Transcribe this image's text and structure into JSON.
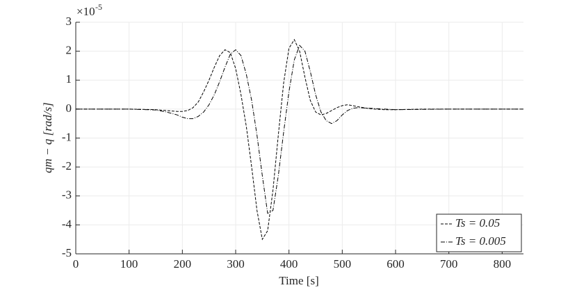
{
  "chart_data": {
    "type": "line",
    "xlabel": "Time [s]",
    "ylabel": "qm − q [rad/s]",
    "y_multiplier": "×10",
    "y_multiplier_exponent": "-5",
    "xlim": [
      0,
      840
    ],
    "ylim": [
      -5,
      3
    ],
    "xticks": [
      0,
      100,
      200,
      300,
      400,
      500,
      600,
      700,
      800
    ],
    "yticks": [
      3,
      2,
      1,
      0,
      -1,
      -2,
      -3,
      -4,
      -5
    ],
    "grid": true,
    "legend": "bottom-right",
    "x": [
      0,
      50,
      100,
      150,
      170,
      190,
      200,
      210,
      220,
      230,
      240,
      250,
      260,
      270,
      280,
      290,
      300,
      310,
      320,
      330,
      340,
      350,
      360,
      370,
      380,
      390,
      400,
      410,
      420,
      430,
      440,
      450,
      460,
      470,
      480,
      490,
      500,
      510,
      520,
      530,
      540,
      550,
      560,
      580,
      600,
      650,
      700,
      750,
      800,
      840
    ],
    "series": [
      {
        "name": "Ts = 0.05",
        "color": "#000000",
        "linestyle": "dashed",
        "values": [
          0,
          0,
          0,
          -0.02,
          -0.05,
          -0.08,
          -0.08,
          -0.05,
          0.05,
          0.25,
          0.6,
          1.0,
          1.45,
          1.85,
          2.05,
          1.95,
          1.4,
          0.5,
          -0.6,
          -2.0,
          -3.5,
          -4.5,
          -4.2,
          -2.8,
          -0.9,
          0.9,
          2.1,
          2.4,
          2.0,
          1.1,
          0.3,
          -0.1,
          -0.2,
          -0.15,
          -0.05,
          0.05,
          0.12,
          0.15,
          0.12,
          0.08,
          0.05,
          0.02,
          0,
          -0.02,
          -0.02,
          0,
          0,
          0,
          0,
          0
        ]
      },
      {
        "name": "Ts = 0.005",
        "color": "#000000",
        "linestyle": "dashdot",
        "values": [
          0,
          0,
          0,
          -0.03,
          -0.1,
          -0.2,
          -0.28,
          -0.33,
          -0.33,
          -0.25,
          -0.1,
          0.15,
          0.5,
          0.95,
          1.45,
          1.9,
          2.05,
          1.85,
          1.2,
          0.3,
          -0.9,
          -2.3,
          -3.6,
          -3.5,
          -2.3,
          -0.8,
          0.6,
          1.7,
          2.2,
          2.0,
          1.3,
          0.5,
          -0.1,
          -0.4,
          -0.5,
          -0.4,
          -0.2,
          -0.05,
          0.03,
          0.05,
          0.04,
          0.03,
          0.02,
          0,
          -0.02,
          -0.01,
          0,
          0,
          0,
          0
        ]
      }
    ]
  }
}
